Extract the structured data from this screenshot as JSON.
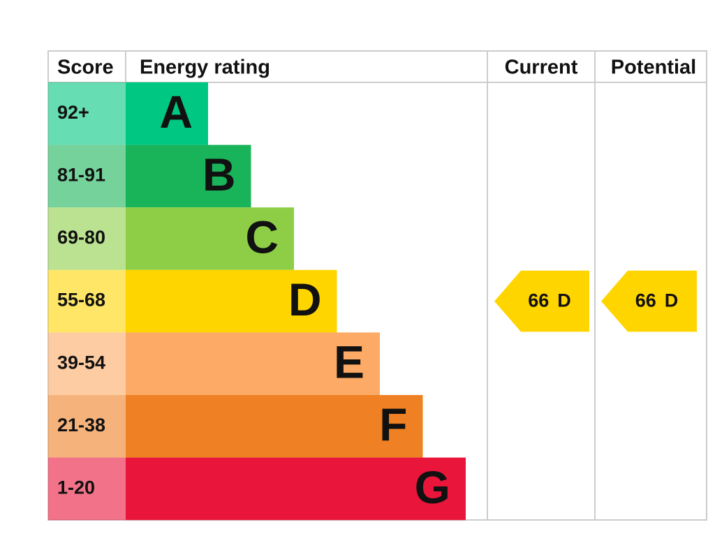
{
  "header": {
    "score": "Score",
    "rating": "Energy rating",
    "current": "Current",
    "potential": "Potential"
  },
  "bands": [
    {
      "score": "92+",
      "letter": "A",
      "color": "#00c781"
    },
    {
      "score": "81-91",
      "letter": "B",
      "color": "#19b459"
    },
    {
      "score": "69-80",
      "letter": "C",
      "color": "#8dce46"
    },
    {
      "score": "55-68",
      "letter": "D",
      "color": "#ffd500"
    },
    {
      "score": "39-54",
      "letter": "E",
      "color": "#fcaa65"
    },
    {
      "score": "21-38",
      "letter": "F",
      "color": "#ef8023"
    },
    {
      "score": "1-20",
      "letter": "G",
      "color": "#e9153b"
    }
  ],
  "current": {
    "value": 66,
    "letter": "D"
  },
  "potential": {
    "value": 66,
    "letter": "D"
  }
}
